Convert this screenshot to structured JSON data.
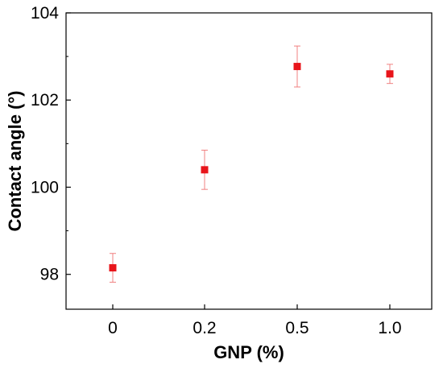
{
  "chart_data": {
    "type": "scatter",
    "title": "",
    "xlabel": "GNP (%)",
    "ylabel": "Contact angle (°)",
    "categories": [
      "0",
      "0.2",
      "0.5",
      "1.0"
    ],
    "ylim": [
      97.2,
      104
    ],
    "yticks": [
      98,
      100,
      102,
      104
    ],
    "grid": false,
    "legend": "none",
    "marker": "square",
    "color": "#e8141a",
    "error_color": "#f08080",
    "series": [
      {
        "values": [
          98.15,
          100.4,
          102.77,
          102.6
        ],
        "errors": [
          0.33,
          0.45,
          0.47,
          0.22
        ]
      }
    ]
  }
}
